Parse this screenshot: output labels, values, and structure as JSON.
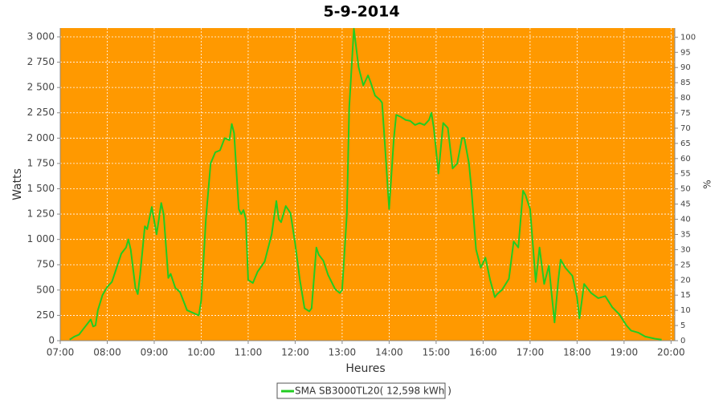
{
  "chart_data": {
    "type": "line",
    "title": "5-9-2014",
    "x_label": "Heures",
    "y_label": "Watts",
    "y2_label": "%",
    "plot_background": "#ff9900",
    "grid": true,
    "xlim": [
      7,
      20.08
    ],
    "ylim": [
      0,
      3087
    ],
    "y2lim": [
      0,
      103
    ],
    "xticks": [
      {
        "value": 7,
        "label": "07:00"
      },
      {
        "value": 8,
        "label": "08:00"
      },
      {
        "value": 9,
        "label": "09:00"
      },
      {
        "value": 10,
        "label": "10:00"
      },
      {
        "value": 11,
        "label": "11:00"
      },
      {
        "value": 12,
        "label": "12:00"
      },
      {
        "value": 13,
        "label": "13:00"
      },
      {
        "value": 14,
        "label": "14:00"
      },
      {
        "value": 15,
        "label": "15:00"
      },
      {
        "value": 16,
        "label": "16:00"
      },
      {
        "value": 17,
        "label": "17:00"
      },
      {
        "value": 18,
        "label": "18:00"
      },
      {
        "value": 19,
        "label": "19:00"
      },
      {
        "value": 20,
        "label": "20:00"
      }
    ],
    "yticks": [
      0,
      250,
      500,
      750,
      {
        "value": 1000,
        "label": "1 000"
      },
      {
        "value": 1250,
        "label": "1 250"
      },
      {
        "value": 1500,
        "label": "1 500"
      },
      {
        "value": 1750,
        "label": "1 750"
      },
      {
        "value": 2000,
        "label": "2 000"
      },
      {
        "value": 2250,
        "label": "2 250"
      },
      {
        "value": 2500,
        "label": "2 500"
      },
      {
        "value": 2750,
        "label": "2 750"
      },
      {
        "value": 3000,
        "label": "3 000"
      }
    ],
    "y2ticks": [
      0,
      5,
      10,
      15,
      20,
      25,
      30,
      35,
      40,
      45,
      50,
      55,
      60,
      65,
      70,
      75,
      80,
      85,
      90,
      95,
      100
    ],
    "x": [
      7.2,
      7.3,
      7.4,
      7.5,
      7.6,
      7.65,
      7.7,
      7.75,
      7.8,
      7.9,
      8.0,
      8.1,
      8.2,
      8.3,
      8.4,
      8.45,
      8.5,
      8.6,
      8.65,
      8.7,
      8.8,
      8.85,
      8.95,
      9.05,
      9.1,
      9.15,
      9.2,
      9.3,
      9.35,
      9.45,
      9.55,
      9.7,
      9.85,
      9.95,
      10.0,
      10.1,
      10.2,
      10.3,
      10.4,
      10.5,
      10.6,
      10.65,
      10.7,
      10.8,
      10.85,
      10.9,
      10.95,
      11.0,
      11.1,
      11.2,
      11.35,
      11.5,
      11.6,
      11.65,
      11.7,
      11.8,
      11.9,
      12.0,
      12.1,
      12.2,
      12.3,
      12.35,
      12.45,
      12.5,
      12.6,
      12.7,
      12.85,
      12.95,
      13.0,
      13.1,
      13.15,
      13.25,
      13.35,
      13.45,
      13.55,
      13.6,
      13.7,
      13.8,
      13.85,
      13.9,
      14.0,
      14.1,
      14.15,
      14.25,
      14.35,
      14.45,
      14.55,
      14.65,
      14.75,
      14.85,
      14.9,
      14.95,
      15.05,
      15.1,
      15.15,
      15.25,
      15.35,
      15.45,
      15.55,
      15.6,
      15.7,
      15.75,
      15.85,
      15.95,
      16.05,
      16.15,
      16.25,
      16.3,
      16.4,
      16.55,
      16.65,
      16.75,
      16.85,
      16.9,
      17.0,
      17.05,
      17.12,
      17.2,
      17.3,
      17.4,
      17.45,
      17.52,
      17.6,
      17.65,
      17.75,
      17.9,
      18.0,
      18.05,
      18.15,
      18.3,
      18.45,
      18.6,
      18.75,
      18.9,
      19.05,
      19.15,
      19.3,
      19.45,
      19.65,
      19.8
    ],
    "series": [
      {
        "name": "SMA SB3000TL20( 12,598 kWh )",
        "color": "#22cc22",
        "values": [
          10,
          40,
          60,
          120,
          180,
          210,
          140,
          150,
          300,
          450,
          530,
          580,
          720,
          860,
          920,
          1000,
          900,
          520,
          460,
          650,
          1130,
          1100,
          1320,
          1050,
          1200,
          1360,
          1250,
          620,
          660,
          520,
          480,
          300,
          270,
          250,
          400,
          1200,
          1750,
          1860,
          1880,
          2000,
          1980,
          2140,
          2050,
          1300,
          1250,
          1290,
          1200,
          600,
          570,
          680,
          780,
          1050,
          1380,
          1200,
          1170,
          1330,
          1260,
          960,
          600,
          320,
          290,
          320,
          920,
          850,
          790,
          650,
          510,
          470,
          500,
          1250,
          2300,
          3080,
          2700,
          2520,
          2620,
          2560,
          2420,
          2380,
          2350,
          2000,
          1300,
          2000,
          2230,
          2210,
          2180,
          2170,
          2130,
          2150,
          2130,
          2180,
          2250,
          2100,
          1650,
          1900,
          2150,
          2100,
          1700,
          1750,
          2000,
          2000,
          1750,
          1500,
          900,
          720,
          820,
          600,
          430,
          460,
          500,
          610,
          980,
          920,
          1480,
          1440,
          1300,
          1000,
          580,
          920,
          560,
          740,
          500,
          180,
          600,
          800,
          720,
          640,
          430,
          220,
          560,
          470,
          420,
          440,
          330,
          260,
          150,
          100,
          80,
          40,
          20,
          10
        ]
      }
    ]
  }
}
